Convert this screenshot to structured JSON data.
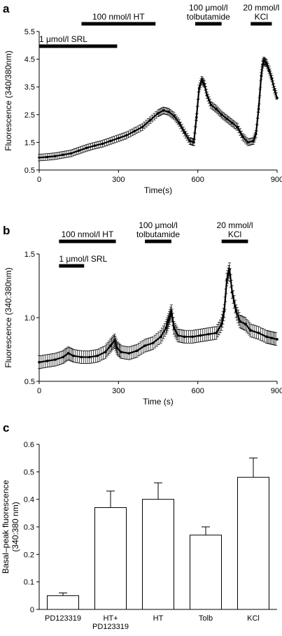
{
  "chart_data": [
    {
      "panel": "a",
      "type": "line",
      "xlabel": "Time(s)",
      "ylabel": "Fluorescence (340/380nm)",
      "xlim": [
        0,
        900
      ],
      "ylim": [
        0.5,
        5.5
      ],
      "xticks": [
        "0",
        "300",
        "600",
        "900"
      ],
      "yticks": [
        "0.5",
        "1.5",
        "2.5",
        "3.5",
        "4.5",
        "5.5"
      ],
      "annotations": [
        {
          "text": "1 μmol/l SRL",
          "start": 0,
          "end": 295,
          "row": "low"
        },
        {
          "text": "100 nmol/l HT",
          "start": 160,
          "end": 440,
          "row": "top"
        },
        {
          "text": "100 μmol/l\ntolbutamide",
          "start": 590,
          "end": 690,
          "row": "top"
        },
        {
          "text": "20 mmol/l\nKCl",
          "start": 800,
          "end": 880,
          "row": "top"
        }
      ],
      "series": [
        {
          "x": [
            0,
            30,
            60,
            90,
            120,
            150,
            180,
            210,
            240,
            270,
            300,
            330,
            360,
            390,
            420,
            450,
            470,
            490,
            510,
            530,
            550,
            570,
            585,
            595,
            605,
            615,
            625,
            635,
            650,
            670,
            690,
            710,
            730,
            750,
            770,
            790,
            810,
            820,
            830,
            840,
            845,
            850,
            860,
            870,
            880,
            890,
            900
          ],
          "y": [
            0.95,
            0.97,
            1.0,
            1.05,
            1.1,
            1.2,
            1.3,
            1.38,
            1.45,
            1.55,
            1.65,
            1.75,
            1.9,
            2.05,
            2.3,
            2.55,
            2.65,
            2.6,
            2.45,
            2.2,
            1.85,
            1.55,
            1.5,
            2.4,
            3.45,
            3.75,
            3.6,
            3.2,
            2.85,
            2.7,
            2.5,
            2.35,
            2.2,
            2.05,
            1.7,
            1.5,
            1.55,
            1.8,
            2.7,
            3.9,
            4.3,
            4.45,
            4.35,
            4.1,
            3.8,
            3.4,
            3.1
          ],
          "err": 0.12
        }
      ]
    },
    {
      "panel": "b",
      "type": "line",
      "xlabel": "Time (s)",
      "ylabel": "Fluorescence (340:380nm)",
      "xlim": [
        0,
        900
      ],
      "ylim": [
        0.5,
        1.5
      ],
      "xticks": [
        "0",
        "300",
        "600",
        "900"
      ],
      "yticks": [
        "0.5",
        "1.0",
        "1.5"
      ],
      "annotations": [
        {
          "text": "1 μmol/l SRL",
          "start": 75,
          "end": 170,
          "row": "low"
        },
        {
          "text": "100 nmol/l HT",
          "start": 75,
          "end": 290,
          "row": "top"
        },
        {
          "text": "100  μmol/l\ntolbutamide",
          "start": 400,
          "end": 500,
          "row": "top"
        },
        {
          "text": "20 mmol/l\nKCl",
          "start": 690,
          "end": 790,
          "row": "top"
        }
      ],
      "series": [
        {
          "x": [
            0,
            30,
            60,
            90,
            110,
            130,
            160,
            190,
            220,
            250,
            270,
            285,
            295,
            310,
            340,
            370,
            400,
            430,
            460,
            480,
            490,
            500,
            510,
            525,
            550,
            580,
            610,
            640,
            670,
            690,
            700,
            710,
            720,
            730,
            745,
            760,
            780,
            800,
            830,
            860,
            880,
            900
          ],
          "y": [
            0.65,
            0.66,
            0.67,
            0.69,
            0.72,
            0.7,
            0.69,
            0.69,
            0.7,
            0.73,
            0.78,
            0.82,
            0.76,
            0.73,
            0.72,
            0.74,
            0.78,
            0.8,
            0.85,
            0.92,
            0.98,
            1.05,
            0.92,
            0.86,
            0.85,
            0.85,
            0.86,
            0.87,
            0.88,
            0.95,
            1.05,
            1.3,
            1.38,
            1.2,
            1.05,
            0.97,
            0.95,
            0.9,
            0.88,
            0.85,
            0.84,
            0.83
          ],
          "err": 0.05
        }
      ]
    },
    {
      "panel": "c",
      "type": "bar",
      "ylabel": "Basal–peak fluorescence\n(340:380 nm)",
      "ylim": [
        0,
        0.6
      ],
      "yticks": [
        "0",
        "0.1",
        "0.2",
        "0.3",
        "0.4",
        "0.5",
        "0.6"
      ],
      "categories": [
        "PD123319",
        "HT+\nPD123319",
        "HT",
        "Tolb",
        "KCl"
      ],
      "values": [
        0.05,
        0.37,
        0.4,
        0.27,
        0.48
      ],
      "errors": [
        0.01,
        0.06,
        0.06,
        0.03,
        0.07
      ]
    }
  ],
  "panel_letters": {
    "a": "a",
    "b": "b",
    "c": "c"
  }
}
